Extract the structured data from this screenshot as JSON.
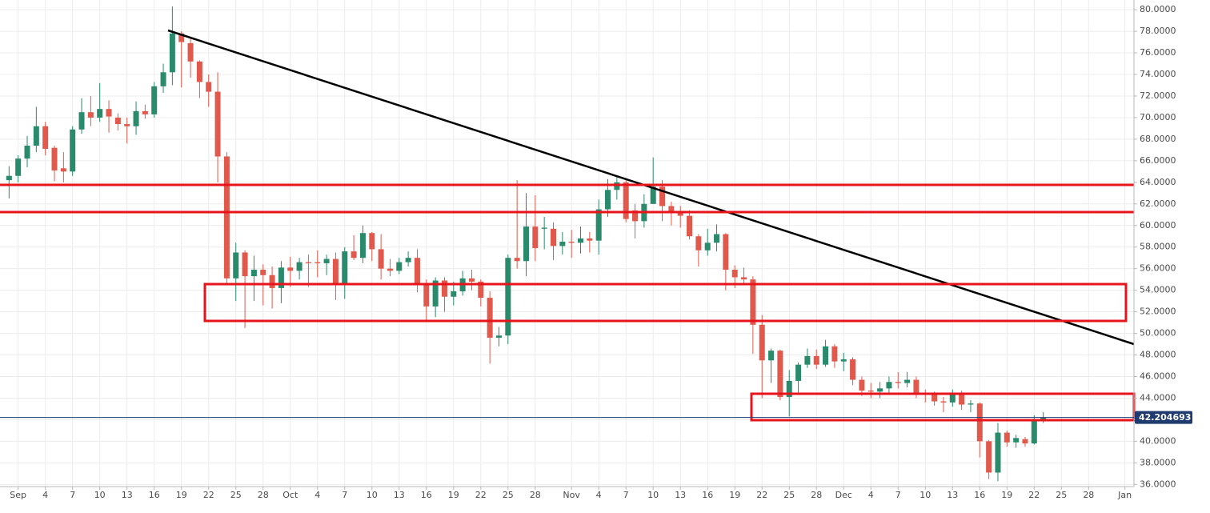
{
  "chart_data": {
    "type": "candlestick",
    "x": [
      "08-31",
      "09-01",
      "09-02",
      "09-03",
      "09-04",
      "09-05",
      "09-06",
      "09-07",
      "09-08",
      "09-09",
      "09-10",
      "09-11",
      "09-12",
      "09-13",
      "09-14",
      "09-15",
      "09-16",
      "09-17",
      "09-18",
      "09-19",
      "09-20",
      "09-21",
      "09-22",
      "09-23",
      "09-24",
      "09-25",
      "09-26",
      "09-27",
      "09-28",
      "09-29",
      "09-30",
      "10-01",
      "10-02",
      "10-03",
      "10-04",
      "10-05",
      "10-06",
      "10-07",
      "10-08",
      "10-09",
      "10-10",
      "10-11",
      "10-12",
      "10-13",
      "10-14",
      "10-15",
      "10-16",
      "10-17",
      "10-18",
      "10-19",
      "10-20",
      "10-21",
      "10-22",
      "10-23",
      "10-24",
      "10-25",
      "10-26",
      "10-27",
      "10-28",
      "10-29",
      "10-30",
      "10-31",
      "11-01",
      "11-02",
      "11-03",
      "11-04",
      "11-05",
      "11-06",
      "11-07",
      "11-08",
      "11-09",
      "11-10",
      "11-11",
      "11-12",
      "11-13",
      "11-14",
      "11-15",
      "11-16",
      "11-17",
      "11-18",
      "11-19",
      "11-20",
      "11-21",
      "11-22",
      "11-23",
      "11-24",
      "11-25",
      "11-26",
      "11-27",
      "11-28",
      "11-29",
      "11-30",
      "12-01",
      "12-02",
      "12-03",
      "12-04",
      "12-05",
      "12-06",
      "12-07",
      "12-08",
      "12-09",
      "12-10",
      "12-11",
      "12-12",
      "12-13",
      "12-14",
      "12-15",
      "12-16",
      "12-17",
      "12-18",
      "12-19",
      "12-20",
      "12-21",
      "12-22",
      "12-23"
    ],
    "open": [
      64.2,
      64.6,
      66.2,
      67.4,
      69.2,
      67.2,
      65.3,
      65.0,
      68.9,
      70.5,
      70.0,
      70.8,
      70.0,
      69.4,
      69.2,
      70.6,
      70.3,
      72.9,
      74.2,
      77.8,
      76.9,
      75.2,
      73.3,
      72.4,
      66.4,
      55.1,
      57.5,
      55.3,
      55.9,
      55.4,
      54.2,
      56.1,
      55.8,
      56.6,
      56.6,
      56.5,
      56.9,
      54.6,
      57.6,
      57.0,
      59.3,
      57.8,
      56.0,
      55.8,
      56.6,
      57.0,
      54.6,
      52.5,
      54.9,
      53.4,
      53.9,
      55.1,
      54.8,
      53.3,
      49.6,
      49.8,
      57.0,
      56.7,
      59.9,
      59.7,
      59.7,
      58.1,
      58.5,
      58.4,
      58.8,
      58.6,
      61.5,
      63.3,
      64.0,
      61.4,
      60.4,
      62.0,
      63.6,
      61.8,
      61.2,
      60.9,
      59.0,
      57.7,
      58.4,
      59.2,
      55.9,
      55.2,
      55.0,
      50.8,
      47.5,
      48.4,
      44.1,
      45.6,
      47.1,
      47.9,
      47.1,
      48.8,
      47.4,
      47.6,
      45.7,
      44.7,
      44.6,
      44.9,
      45.5,
      45.4,
      45.7,
      44.5,
      44.3,
      43.7,
      43.6,
      44.4,
      43.4,
      43.5,
      40.0,
      37.1,
      40.8,
      39.9,
      40.2,
      39.8,
      42.0
    ],
    "high": [
      65.5,
      66.5,
      68.3,
      71,
      69.6,
      67.4,
      66.8,
      69.2,
      71.8,
      72,
      73.2,
      71.6,
      70.4,
      70.0,
      71.5,
      71.2,
      73.3,
      75.0,
      80.3,
      78.0,
      77.3,
      75.3,
      74.0,
      74.2,
      66.8,
      58.4,
      57.7,
      57.2,
      56.4,
      56.2,
      56.7,
      57.1,
      57.0,
      57.3,
      57.7,
      57.3,
      57.5,
      58.0,
      59.1,
      60.0,
      59.4,
      59.2,
      56.9,
      57.0,
      57.6,
      57.8,
      55.0,
      55.2,
      55.2,
      54.8,
      55.8,
      55.9,
      55.0,
      53.9,
      50.6,
      57.3,
      64.2,
      63.0,
      62.8,
      60.8,
      60.3,
      59.4,
      59.6,
      59.9,
      59.4,
      62.4,
      64.3,
      64.5,
      64.4,
      62.0,
      62.9,
      66.3,
      64.2,
      62.2,
      61.8,
      61.4,
      59.2,
      59.7,
      60.1,
      59.3,
      56.3,
      56.1,
      55.3,
      51.7,
      48.6,
      48.5,
      46.6,
      47.3,
      48.6,
      48.5,
      49.4,
      49.0,
      48.2,
      47.8,
      46.0,
      45.4,
      45.5,
      46.0,
      46.4,
      46.4,
      46.0,
      44.8,
      44.6,
      44.1,
      44.8,
      44.7,
      43.8,
      43.6,
      40.1,
      41.7,
      41.0,
      40.6,
      40.4,
      42.4,
      42.7
    ],
    "low": [
      62.5,
      64.0,
      65.4,
      66.8,
      66.5,
      64.1,
      64.0,
      64.6,
      68.5,
      69.2,
      69.6,
      68.6,
      68.8,
      67.6,
      68.4,
      69.9,
      70.0,
      72.3,
      73.0,
      72.8,
      73.7,
      71.8,
      71.0,
      64.0,
      54.5,
      53.0,
      50.5,
      53.0,
      52.6,
      52.3,
      52.8,
      54.3,
      55.0,
      54.3,
      55.2,
      55.4,
      53.1,
      53.2,
      56.8,
      56.5,
      56.7,
      55.0,
      55.3,
      55.5,
      56.2,
      53.8,
      51.1,
      51.5,
      52.0,
      52.6,
      53.5,
      54.0,
      52.5,
      47.2,
      48.8,
      49.0,
      56.0,
      55.3,
      56.7,
      57.8,
      56.8,
      57.3,
      57.0,
      57.4,
      57.5,
      57.3,
      60.8,
      62.4,
      60.3,
      58.8,
      59.8,
      62.0,
      60.4,
      60.0,
      59.8,
      58.7,
      56.2,
      57.2,
      57.6,
      54.0,
      54.2,
      54.6,
      48.1,
      44.0,
      45.4,
      43.8,
      42.3,
      44.3,
      46.8,
      46.7,
      46.9,
      46.8,
      46.5,
      45.2,
      44.2,
      44.0,
      44.0,
      44.4,
      44.9,
      45.0,
      44.0,
      43.6,
      43.3,
      42.7,
      43.2,
      42.9,
      42.7,
      38.5,
      36.5,
      36.3,
      39.5,
      39.4,
      39.5,
      39.7,
      41.7
    ],
    "close": [
      64.6,
      66.2,
      67.4,
      69.2,
      67.1,
      65.1,
      65.0,
      68.9,
      70.5,
      70.0,
      70.8,
      70.1,
      69.4,
      69.2,
      70.6,
      70.3,
      72.9,
      74.2,
      77.8,
      77.0,
      75.2,
      73.3,
      72.4,
      66.4,
      55.1,
      57.5,
      55.3,
      55.9,
      55.4,
      54.2,
      56.1,
      55.8,
      56.6,
      56.5,
      56.5,
      56.9,
      54.6,
      57.6,
      57.0,
      59.3,
      57.8,
      56.0,
      55.8,
      56.6,
      57.0,
      54.6,
      52.5,
      54.9,
      53.4,
      53.9,
      55.1,
      54.8,
      53.3,
      49.6,
      49.8,
      57.0,
      56.7,
      59.9,
      57.9,
      59.8,
      58.1,
      58.5,
      58.4,
      58.8,
      58.6,
      61.5,
      63.3,
      64.0,
      60.6,
      60.4,
      62.0,
      63.6,
      61.8,
      61.2,
      60.9,
      59.0,
      57.7,
      58.4,
      59.2,
      55.9,
      55.2,
      55.0,
      50.8,
      47.5,
      48.4,
      44.1,
      45.6,
      47.1,
      47.9,
      47.1,
      48.8,
      47.4,
      47.6,
      45.7,
      44.7,
      44.6,
      44.9,
      45.5,
      45.4,
      45.7,
      44.5,
      44.3,
      43.7,
      43.6,
      44.4,
      43.4,
      43.5,
      40.0,
      37.1,
      40.8,
      39.9,
      40.3,
      39.8,
      42.0,
      42.2
    ],
    "up_color": "#2a8a6c",
    "down_color": "#e0594c",
    "last_price": 42.204693,
    "last_price_color": "#1f3b70",
    "xlim": [
      "08-30",
      "01-02"
    ],
    "xticks": [
      {
        "value": "09-01",
        "label": "Sep"
      },
      {
        "value": "09-04",
        "label": "4"
      },
      {
        "value": "09-07",
        "label": "7"
      },
      {
        "value": "09-10",
        "label": "10"
      },
      {
        "value": "09-13",
        "label": "13"
      },
      {
        "value": "09-16",
        "label": "16"
      },
      {
        "value": "09-19",
        "label": "19"
      },
      {
        "value": "09-22",
        "label": "22"
      },
      {
        "value": "09-25",
        "label": "25"
      },
      {
        "value": "09-28",
        "label": "28"
      },
      {
        "value": "10-01",
        "label": "Oct"
      },
      {
        "value": "10-04",
        "label": "4"
      },
      {
        "value": "10-07",
        "label": "7"
      },
      {
        "value": "10-10",
        "label": "10"
      },
      {
        "value": "10-13",
        "label": "13"
      },
      {
        "value": "10-16",
        "label": "16"
      },
      {
        "value": "10-19",
        "label": "19"
      },
      {
        "value": "10-22",
        "label": "22"
      },
      {
        "value": "10-25",
        "label": "25"
      },
      {
        "value": "10-28",
        "label": "28"
      },
      {
        "value": "11-01",
        "label": "Nov"
      },
      {
        "value": "11-04",
        "label": "4"
      },
      {
        "value": "11-07",
        "label": "7"
      },
      {
        "value": "11-10",
        "label": "10"
      },
      {
        "value": "11-13",
        "label": "13"
      },
      {
        "value": "11-16",
        "label": "16"
      },
      {
        "value": "11-19",
        "label": "19"
      },
      {
        "value": "11-22",
        "label": "22"
      },
      {
        "value": "11-25",
        "label": "25"
      },
      {
        "value": "11-28",
        "label": "28"
      },
      {
        "value": "12-01",
        "label": "Dec"
      },
      {
        "value": "12-04",
        "label": "4"
      },
      {
        "value": "12-07",
        "label": "7"
      },
      {
        "value": "12-10",
        "label": "10"
      },
      {
        "value": "12-13",
        "label": "13"
      },
      {
        "value": "12-16",
        "label": "16"
      },
      {
        "value": "12-19",
        "label": "19"
      },
      {
        "value": "12-22",
        "label": "22"
      },
      {
        "value": "12-25",
        "label": "25"
      },
      {
        "value": "12-28",
        "label": "28"
      },
      {
        "value": "01-01",
        "label": "Jan"
      }
    ],
    "ylim": [
      35.8,
      80.9
    ],
    "yticks": [
      {
        "value": 36,
        "label": "36.0000"
      },
      {
        "value": 38,
        "label": "38.0000"
      },
      {
        "value": 40,
        "label": "40.0000"
      },
      {
        "value": 42,
        "label": "42.0000"
      },
      {
        "value": 44,
        "label": "44.0000"
      },
      {
        "value": 46,
        "label": "46.0000"
      },
      {
        "value": 48,
        "label": "48.0000"
      },
      {
        "value": 50,
        "label": "50.0000"
      },
      {
        "value": 52,
        "label": "52.0000"
      },
      {
        "value": 54,
        "label": "54.0000"
      },
      {
        "value": 56,
        "label": "56.0000"
      },
      {
        "value": 58,
        "label": "58.0000"
      },
      {
        "value": 60,
        "label": "60.0000"
      },
      {
        "value": 62,
        "label": "62.0000"
      },
      {
        "value": 64,
        "label": "64.0000"
      },
      {
        "value": 66,
        "label": "66.0000"
      },
      {
        "value": 68,
        "label": "68.0000"
      },
      {
        "value": 70,
        "label": "70.0000"
      },
      {
        "value": 72,
        "label": "72.0000"
      },
      {
        "value": 74,
        "label": "74.0000"
      },
      {
        "value": 76,
        "label": "76.0000"
      },
      {
        "value": 78,
        "label": "78.0000"
      },
      {
        "value": 80,
        "label": "80.0000"
      }
    ],
    "grid": true
  }
}
